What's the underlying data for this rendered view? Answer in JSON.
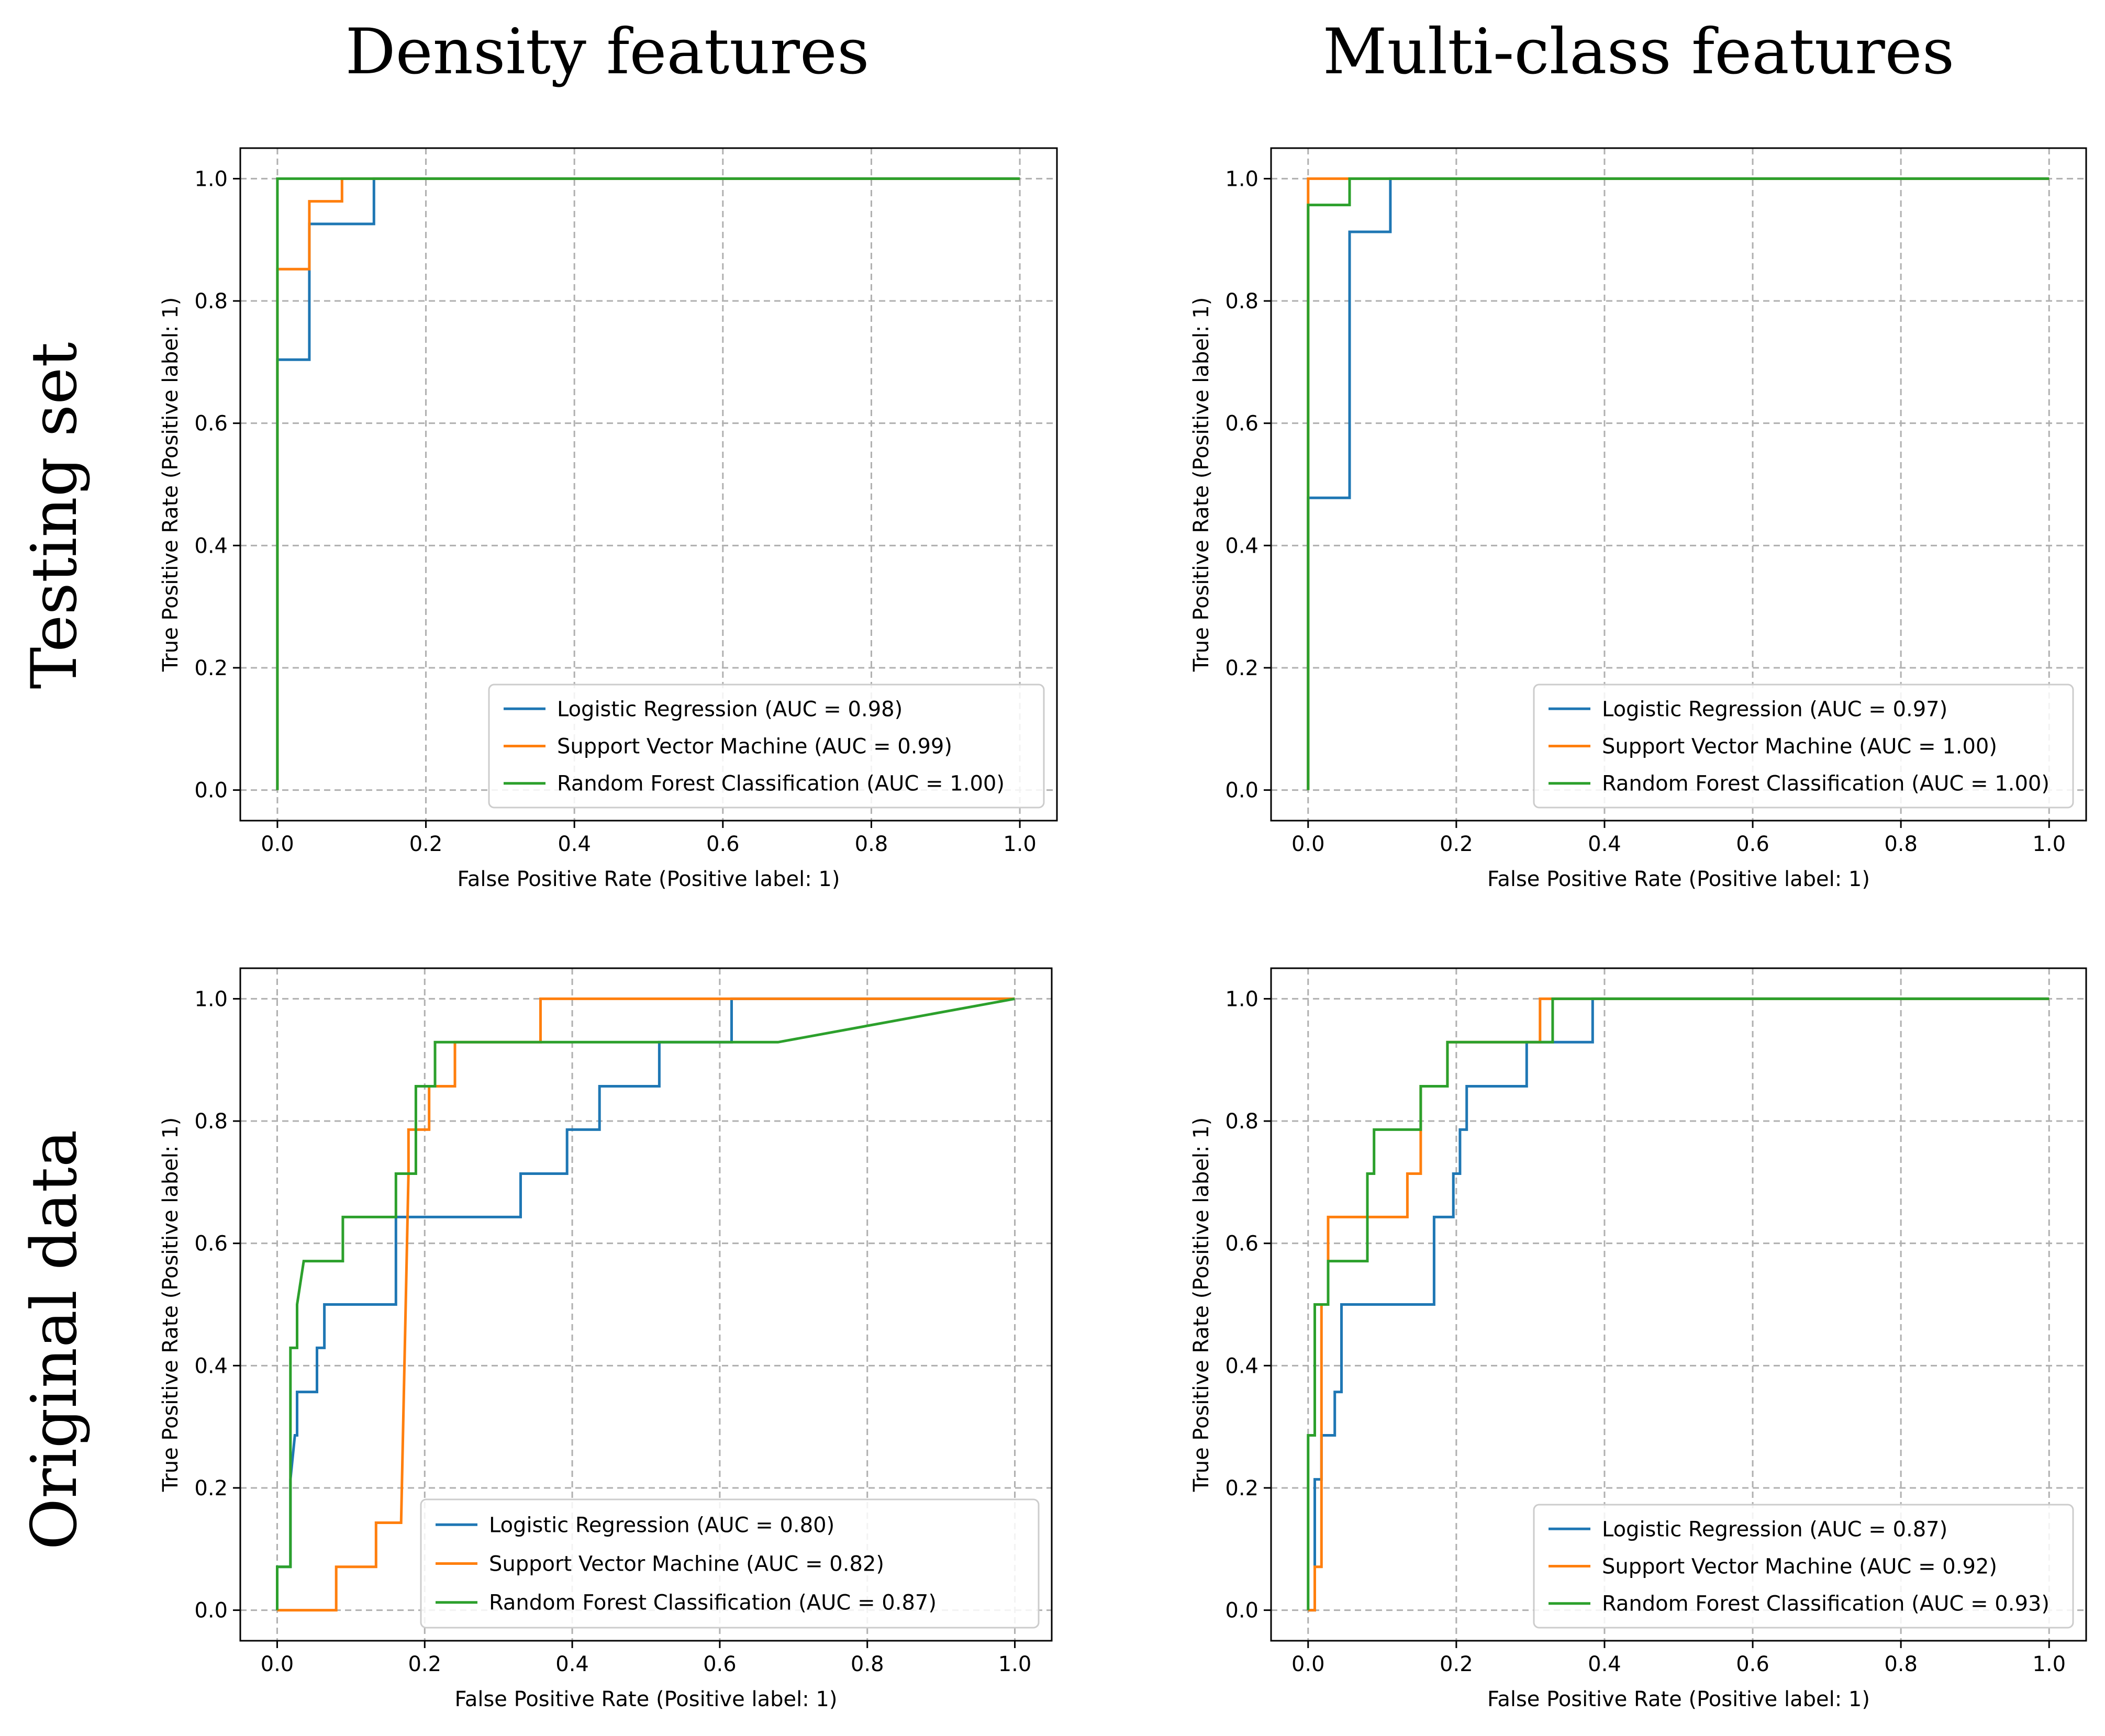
{
  "figure": {
    "col_titles": [
      "Density features",
      "Multi-class features"
    ],
    "row_titles": [
      "Testing set",
      "Original data"
    ],
    "colors": {
      "Logistic Regression": "#1f77b4",
      "Support Vector Machine": "#ff7f0e",
      "Random Forest Classification": "#2ca02c"
    }
  },
  "chart_data": [
    {
      "type": "line",
      "panel": "Testing set / Density features",
      "xlabel": "False Positive Rate (Positive label: 1)",
      "ylabel": "True Positive Rate (Positive label: 1)",
      "xlim": [
        -0.05,
        1.05
      ],
      "ylim": [
        -0.05,
        1.05
      ],
      "xticks": [
        "0.0",
        "0.2",
        "0.4",
        "0.6",
        "0.8",
        "1.0"
      ],
      "yticks": [
        "0.0",
        "0.2",
        "0.4",
        "0.6",
        "0.8",
        "1.0"
      ],
      "grid": true,
      "legend_position": "lower-right",
      "series": [
        {
          "name": "Logistic Regression",
          "label": "Logistic Regression (AUC = 0.98)",
          "points": [
            [
              0,
              0
            ],
            [
              0,
              0.704
            ],
            [
              0.043,
              0.704
            ],
            [
              0.043,
              0.926
            ],
            [
              0.13,
              0.926
            ],
            [
              0.13,
              1.0
            ],
            [
              1.0,
              1.0
            ]
          ]
        },
        {
          "name": "Support Vector Machine",
          "label": "Support Vector Machine (AUC = 0.99)",
          "points": [
            [
              0,
              0
            ],
            [
              0,
              0.852
            ],
            [
              0.043,
              0.852
            ],
            [
              0.043,
              0.963
            ],
            [
              0.087,
              0.963
            ],
            [
              0.087,
              1.0
            ],
            [
              1.0,
              1.0
            ]
          ]
        },
        {
          "name": "Random Forest Classification",
          "label": "Random Forest Classification (AUC = 1.00)",
          "points": [
            [
              0,
              0
            ],
            [
              0,
              1.0
            ],
            [
              1.0,
              1.0
            ]
          ]
        }
      ]
    },
    {
      "type": "line",
      "panel": "Testing set / Multi-class features",
      "xlabel": "False Positive Rate (Positive label: 1)",
      "ylabel": "True Positive Rate (Positive label: 1)",
      "xlim": [
        -0.05,
        1.05
      ],
      "ylim": [
        -0.05,
        1.05
      ],
      "xticks": [
        "0.0",
        "0.2",
        "0.4",
        "0.6",
        "0.8",
        "1.0"
      ],
      "yticks": [
        "0.0",
        "0.2",
        "0.4",
        "0.6",
        "0.8",
        "1.0"
      ],
      "grid": true,
      "legend_position": "lower-right",
      "series": [
        {
          "name": "Logistic Regression",
          "label": "Logistic Regression (AUC = 0.97)",
          "points": [
            [
              0,
              0
            ],
            [
              0,
              0.478
            ],
            [
              0.056,
              0.478
            ],
            [
              0.056,
              0.913
            ],
            [
              0.111,
              0.913
            ],
            [
              0.111,
              1.0
            ],
            [
              1.0,
              1.0
            ]
          ]
        },
        {
          "name": "Support Vector Machine",
          "label": "Support Vector Machine (AUC = 1.00)",
          "points": [
            [
              0,
              0
            ],
            [
              0,
              1.0
            ],
            [
              1.0,
              1.0
            ]
          ]
        },
        {
          "name": "Random Forest Classification",
          "label": "Random Forest Classification (AUC = 1.00)",
          "points": [
            [
              0,
              0
            ],
            [
              0,
              0.957
            ],
            [
              0.056,
              0.957
            ],
            [
              0.056,
              1.0
            ],
            [
              1.0,
              1.0
            ]
          ]
        }
      ]
    },
    {
      "type": "line",
      "panel": "Original data / Density features",
      "xlabel": "False Positive Rate (Positive label: 1)",
      "ylabel": "True Positive Rate (Positive label: 1)",
      "xlim": [
        -0.05,
        1.05
      ],
      "ylim": [
        -0.05,
        1.05
      ],
      "xticks": [
        "0.0",
        "0.2",
        "0.4",
        "0.6",
        "0.8",
        "1.0"
      ],
      "yticks": [
        "0.0",
        "0.2",
        "0.4",
        "0.6",
        "0.8",
        "1.0"
      ],
      "grid": true,
      "legend_position": "lower-right",
      "series": [
        {
          "name": "Logistic Regression",
          "label": "Logistic Regression (AUC = 0.80)",
          "points": [
            [
              0,
              0
            ],
            [
              0,
              0.071
            ],
            [
              0.018,
              0.071
            ],
            [
              0.018,
              0.214
            ],
            [
              0.024,
              0.286
            ],
            [
              0.027,
              0.286
            ],
            [
              0.027,
              0.357
            ],
            [
              0.054,
              0.357
            ],
            [
              0.054,
              0.429
            ],
            [
              0.064,
              0.429
            ],
            [
              0.064,
              0.5
            ],
            [
              0.161,
              0.5
            ],
            [
              0.161,
              0.643
            ],
            [
              0.33,
              0.643
            ],
            [
              0.33,
              0.714
            ],
            [
              0.393,
              0.714
            ],
            [
              0.393,
              0.786
            ],
            [
              0.437,
              0.786
            ],
            [
              0.437,
              0.857
            ],
            [
              0.518,
              0.857
            ],
            [
              0.518,
              0.929
            ],
            [
              0.616,
              0.929
            ],
            [
              0.616,
              1.0
            ],
            [
              1.0,
              1.0
            ]
          ]
        },
        {
          "name": "Support Vector Machine",
          "label": "Support Vector Machine (AUC = 0.82)",
          "points": [
            [
              0,
              0
            ],
            [
              0.08,
              0
            ],
            [
              0.08,
              0.071
            ],
            [
              0.134,
              0.071
            ],
            [
              0.134,
              0.143
            ],
            [
              0.168,
              0.143
            ],
            [
              0.178,
              0.714
            ],
            [
              0.178,
              0.786
            ],
            [
              0.206,
              0.786
            ],
            [
              0.206,
              0.857
            ],
            [
              0.241,
              0.857
            ],
            [
              0.241,
              0.929
            ],
            [
              0.357,
              0.929
            ],
            [
              0.357,
              1.0
            ],
            [
              1.0,
              1.0
            ]
          ]
        },
        {
          "name": "Random Forest Classification",
          "label": "Random Forest Classification (AUC = 0.87)",
          "points": [
            [
              0,
              0
            ],
            [
              0,
              0.071
            ],
            [
              0.018,
              0.071
            ],
            [
              0.018,
              0.429
            ],
            [
              0.027,
              0.429
            ],
            [
              0.027,
              0.5
            ],
            [
              0.036,
              0.571
            ],
            [
              0.089,
              0.571
            ],
            [
              0.089,
              0.643
            ],
            [
              0.161,
              0.643
            ],
            [
              0.161,
              0.714
            ],
            [
              0.188,
              0.714
            ],
            [
              0.188,
              0.857
            ],
            [
              0.214,
              0.857
            ],
            [
              0.214,
              0.929
            ],
            [
              0.679,
              0.929
            ],
            [
              1.0,
              1.0
            ]
          ]
        }
      ]
    },
    {
      "type": "line",
      "panel": "Original data / Multi-class features",
      "xlabel": "False Positive Rate (Positive label: 1)",
      "ylabel": "True Positive Rate (Positive label: 1)",
      "xlim": [
        -0.05,
        1.05
      ],
      "ylim": [
        -0.05,
        1.05
      ],
      "xticks": [
        "0.0",
        "0.2",
        "0.4",
        "0.6",
        "0.8",
        "1.0"
      ],
      "yticks": [
        "0.0",
        "0.2",
        "0.4",
        "0.6",
        "0.8",
        "1.0"
      ],
      "grid": true,
      "legend_position": "lower-right",
      "series": [
        {
          "name": "Logistic Regression",
          "label": "Logistic Regression (AUC = 0.87)",
          "points": [
            [
              0,
              0
            ],
            [
              0.009,
              0
            ],
            [
              0.009,
              0.214
            ],
            [
              0.018,
              0.214
            ],
            [
              0.018,
              0.286
            ],
            [
              0.036,
              0.286
            ],
            [
              0.036,
              0.357
            ],
            [
              0.045,
              0.357
            ],
            [
              0.045,
              0.5
            ],
            [
              0.17,
              0.5
            ],
            [
              0.17,
              0.643
            ],
            [
              0.196,
              0.643
            ],
            [
              0.196,
              0.714
            ],
            [
              0.205,
              0.714
            ],
            [
              0.205,
              0.786
            ],
            [
              0.214,
              0.786
            ],
            [
              0.214,
              0.857
            ],
            [
              0.295,
              0.857
            ],
            [
              0.295,
              0.929
            ],
            [
              0.384,
              0.929
            ],
            [
              0.384,
              1.0
            ],
            [
              1.0,
              1.0
            ]
          ]
        },
        {
          "name": "Support Vector Machine",
          "label": "Support Vector Machine (AUC = 0.92)",
          "points": [
            [
              0,
              0
            ],
            [
              0.009,
              0
            ],
            [
              0.009,
              0.071
            ],
            [
              0.018,
              0.071
            ],
            [
              0.018,
              0.5
            ],
            [
              0.027,
              0.5
            ],
            [
              0.027,
              0.643
            ],
            [
              0.134,
              0.643
            ],
            [
              0.134,
              0.714
            ],
            [
              0.152,
              0.714
            ],
            [
              0.152,
              0.857
            ],
            [
              0.188,
              0.857
            ],
            [
              0.188,
              0.929
            ],
            [
              0.313,
              0.929
            ],
            [
              0.313,
              1.0
            ],
            [
              1.0,
              1.0
            ]
          ]
        },
        {
          "name": "Random Forest Classification",
          "label": "Random Forest Classification (AUC = 0.93)",
          "points": [
            [
              0,
              0
            ],
            [
              0,
              0.286
            ],
            [
              0.009,
              0.286
            ],
            [
              0.009,
              0.5
            ],
            [
              0.027,
              0.5
            ],
            [
              0.027,
              0.571
            ],
            [
              0.08,
              0.571
            ],
            [
              0.08,
              0.714
            ],
            [
              0.089,
              0.714
            ],
            [
              0.089,
              0.786
            ],
            [
              0.152,
              0.786
            ],
            [
              0.152,
              0.857
            ],
            [
              0.188,
              0.857
            ],
            [
              0.188,
              0.929
            ],
            [
              0.33,
              0.929
            ],
            [
              0.33,
              1.0
            ],
            [
              1.0,
              1.0
            ]
          ]
        }
      ]
    }
  ]
}
